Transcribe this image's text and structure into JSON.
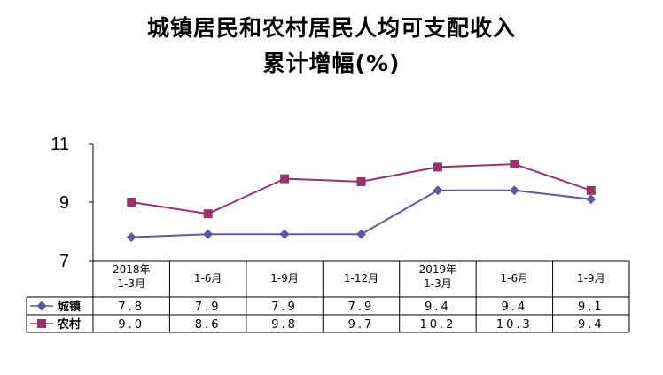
{
  "chart_data": {
    "type": "line",
    "title": "城镇居民和农村居民人均可支配收入",
    "subtitle": "累计增幅(%)",
    "categories": [
      "2018年\n1-3月",
      "1-6月",
      "1-9月",
      "1-12月",
      "2019年\n1-3月",
      "1-6月",
      "1-9月"
    ],
    "series": [
      {
        "name": "城镇",
        "values": [
          7.8,
          7.9,
          7.9,
          7.9,
          9.4,
          9.4,
          9.1
        ],
        "labels": [
          "7.8",
          "7.9",
          "7.9",
          "7.9",
          "9.4",
          "9.4",
          "9.1"
        ],
        "color": "#5a5aa8",
        "marker": "diamond"
      },
      {
        "name": "农村",
        "values": [
          9.0,
          8.6,
          9.8,
          9.7,
          10.2,
          10.3,
          9.4
        ],
        "labels": [
          "9.0",
          "8.6",
          "9.8",
          "9.7",
          "10.2",
          "10.3",
          "9.4"
        ],
        "color": "#993366",
        "marker": "square"
      }
    ],
    "yticks": [
      7,
      9,
      11
    ],
    "ylim": [
      7,
      11
    ],
    "grid": false,
    "legend": "data-table"
  }
}
